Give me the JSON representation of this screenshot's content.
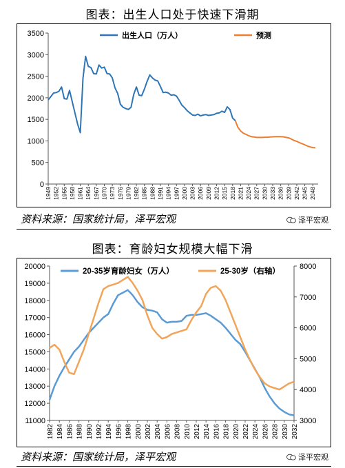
{
  "chart_data": [
    {
      "type": "line",
      "title": "图表：出生人口处于快速下滑期",
      "ylim": [
        0,
        3500
      ],
      "yticks": [
        0,
        500,
        1000,
        1500,
        2000,
        2500,
        3000,
        3500
      ],
      "xlim": [
        1949,
        2050
      ],
      "xticks": [
        "1949",
        "1952",
        "1955",
        "1958",
        "1961",
        "1964",
        "1967",
        "1970",
        "1973",
        "1976",
        "1979",
        "1982",
        "1985",
        "1988",
        "1991",
        "1994",
        "1997",
        "2000",
        "2003",
        "2006",
        "2009",
        "2012",
        "2015",
        "2018",
        "2021",
        "2024",
        "2027",
        "2030",
        "2033",
        "2036",
        "2039",
        "2042",
        "2045",
        "2048"
      ],
      "legend_position": "top",
      "series": [
        {
          "name": "出生人口（万人）",
          "color": "#2e75b6",
          "x": [
            1949,
            1950,
            1951,
            1952,
            1953,
            1954,
            1955,
            1956,
            1957,
            1958,
            1959,
            1960,
            1961,
            1962,
            1963,
            1964,
            1965,
            1966,
            1967,
            1968,
            1969,
            1970,
            1971,
            1972,
            1973,
            1974,
            1975,
            1976,
            1977,
            1978,
            1979,
            1980,
            1981,
            1982,
            1983,
            1984,
            1985,
            1986,
            1987,
            1988,
            1989,
            1990,
            1991,
            1992,
            1993,
            1994,
            1995,
            1996,
            1997,
            1998,
            1999,
            2000,
            2001,
            2002,
            2003,
            2004,
            2005,
            2006,
            2007,
            2008,
            2009,
            2010,
            2011,
            2012,
            2013,
            2014,
            2015,
            2016,
            2017,
            2018,
            2019
          ],
          "values": [
            1950,
            2030,
            2110,
            2120,
            2150,
            2250,
            1980,
            1970,
            2170,
            1910,
            1650,
            1390,
            1190,
            2450,
            2960,
            2730,
            2700,
            2560,
            2550,
            2760,
            2690,
            2710,
            2560,
            2550,
            2460,
            2230,
            2100,
            1850,
            1780,
            1750,
            1730,
            1780,
            2080,
            2250,
            2060,
            2050,
            2200,
            2380,
            2530,
            2460,
            2410,
            2390,
            2260,
            2120,
            2130,
            2110,
            2060,
            2070,
            2040,
            1940,
            1830,
            1770,
            1700,
            1650,
            1600,
            1590,
            1620,
            1580,
            1600,
            1610,
            1590,
            1600,
            1610,
            1640,
            1650,
            1690,
            1660,
            1790,
            1730,
            1530,
            1470
          ]
        },
        {
          "name": "预测",
          "color": "#ed7d31",
          "x": [
            2019,
            2020,
            2021,
            2022,
            2023,
            2024,
            2025,
            2026,
            2027,
            2028,
            2029,
            2030,
            2031,
            2032,
            2033,
            2034,
            2035,
            2036,
            2037,
            2038,
            2039,
            2040,
            2041,
            2042,
            2043,
            2044,
            2045,
            2046,
            2047,
            2048,
            2049
          ],
          "values": [
            1470,
            1310,
            1230,
            1180,
            1150,
            1120,
            1100,
            1090,
            1080,
            1080,
            1080,
            1085,
            1085,
            1090,
            1095,
            1100,
            1100,
            1100,
            1095,
            1080,
            1070,
            1040,
            1010,
            990,
            960,
            935,
            910,
            880,
            860,
            845,
            840
          ]
        }
      ]
    },
    {
      "type": "line",
      "title": "图表：育龄妇女规模大幅下滑",
      "ylim": [
        11000,
        20000
      ],
      "yticks": [
        11000,
        12000,
        13000,
        14000,
        15000,
        16000,
        17000,
        18000,
        19000,
        20000
      ],
      "y2lim": [
        3000,
        8000
      ],
      "y2ticks": [
        3000,
        4000,
        5000,
        6000,
        7000,
        8000
      ],
      "xlim": [
        1982,
        2032
      ],
      "xticks": [
        "1982",
        "1984",
        "1986",
        "1988",
        "1990",
        "1992",
        "1994",
        "1996",
        "1998",
        "2000",
        "2002",
        "2004",
        "2006",
        "2008",
        "2010",
        "2012",
        "2014",
        "2016",
        "2018",
        "2020",
        "2022",
        "2024",
        "2026",
        "2028",
        "2030",
        "2032"
      ],
      "legend_position": "top",
      "series": [
        {
          "name": "20-35岁育龄妇女（万人）",
          "color": "#5b9bd5",
          "axis": "left",
          "x": [
            1982,
            1983,
            1984,
            1985,
            1986,
            1987,
            1988,
            1989,
            1990,
            1991,
            1992,
            1993,
            1994,
            1995,
            1996,
            1997,
            1998,
            1999,
            2000,
            2001,
            2002,
            2003,
            2004,
            2005,
            2006,
            2007,
            2008,
            2009,
            2010,
            2011,
            2012,
            2013,
            2014,
            2015,
            2016,
            2017,
            2018,
            2019,
            2020,
            2021,
            2022,
            2023,
            2024,
            2025,
            2026,
            2027,
            2028,
            2029,
            2030,
            2031,
            2032
          ],
          "values": [
            12200,
            13000,
            13600,
            14100,
            14550,
            15000,
            15300,
            15700,
            16100,
            16400,
            16700,
            17000,
            17200,
            17800,
            18300,
            18450,
            18600,
            18300,
            17900,
            17600,
            17450,
            17400,
            17300,
            16900,
            16700,
            16750,
            16750,
            16800,
            17100,
            17150,
            17150,
            17200,
            17250,
            17100,
            16900,
            16700,
            16400,
            16050,
            15700,
            15450,
            15000,
            14500,
            14000,
            13500,
            12900,
            12400,
            12000,
            11700,
            11500,
            11350,
            11300
          ]
        },
        {
          "name": "25-30岁（右轴）",
          "color": "#f0a55a",
          "axis": "right",
          "x": [
            1982,
            1983,
            1984,
            1985,
            1986,
            1987,
            1988,
            1989,
            1990,
            1991,
            1992,
            1993,
            1994,
            1995,
            1996,
            1997,
            1998,
            1999,
            2000,
            2001,
            2002,
            2003,
            2004,
            2005,
            2006,
            2007,
            2008,
            2009,
            2010,
            2011,
            2012,
            2013,
            2014,
            2015,
            2016,
            2017,
            2018,
            2019,
            2020,
            2021,
            2022,
            2023,
            2024,
            2025,
            2026,
            2027,
            2028,
            2029,
            2030,
            2031,
            2032
          ],
          "values": [
            5350,
            5450,
            5300,
            4900,
            4550,
            4500,
            4900,
            5300,
            5800,
            6300,
            6800,
            7250,
            7350,
            7400,
            7450,
            7550,
            7650,
            7450,
            7200,
            6900,
            6400,
            6000,
            5800,
            5650,
            5700,
            5800,
            5850,
            5900,
            5950,
            6250,
            6500,
            6700,
            7100,
            7300,
            7350,
            7200,
            6900,
            6500,
            6100,
            5700,
            5300,
            4950,
            4650,
            4400,
            4200,
            4100,
            4050,
            4000,
            4100,
            4200,
            4250
          ]
        }
      ]
    }
  ],
  "source_text": "资料来源：国家统计局，泽平宏观",
  "watermark": "泽平宏观"
}
